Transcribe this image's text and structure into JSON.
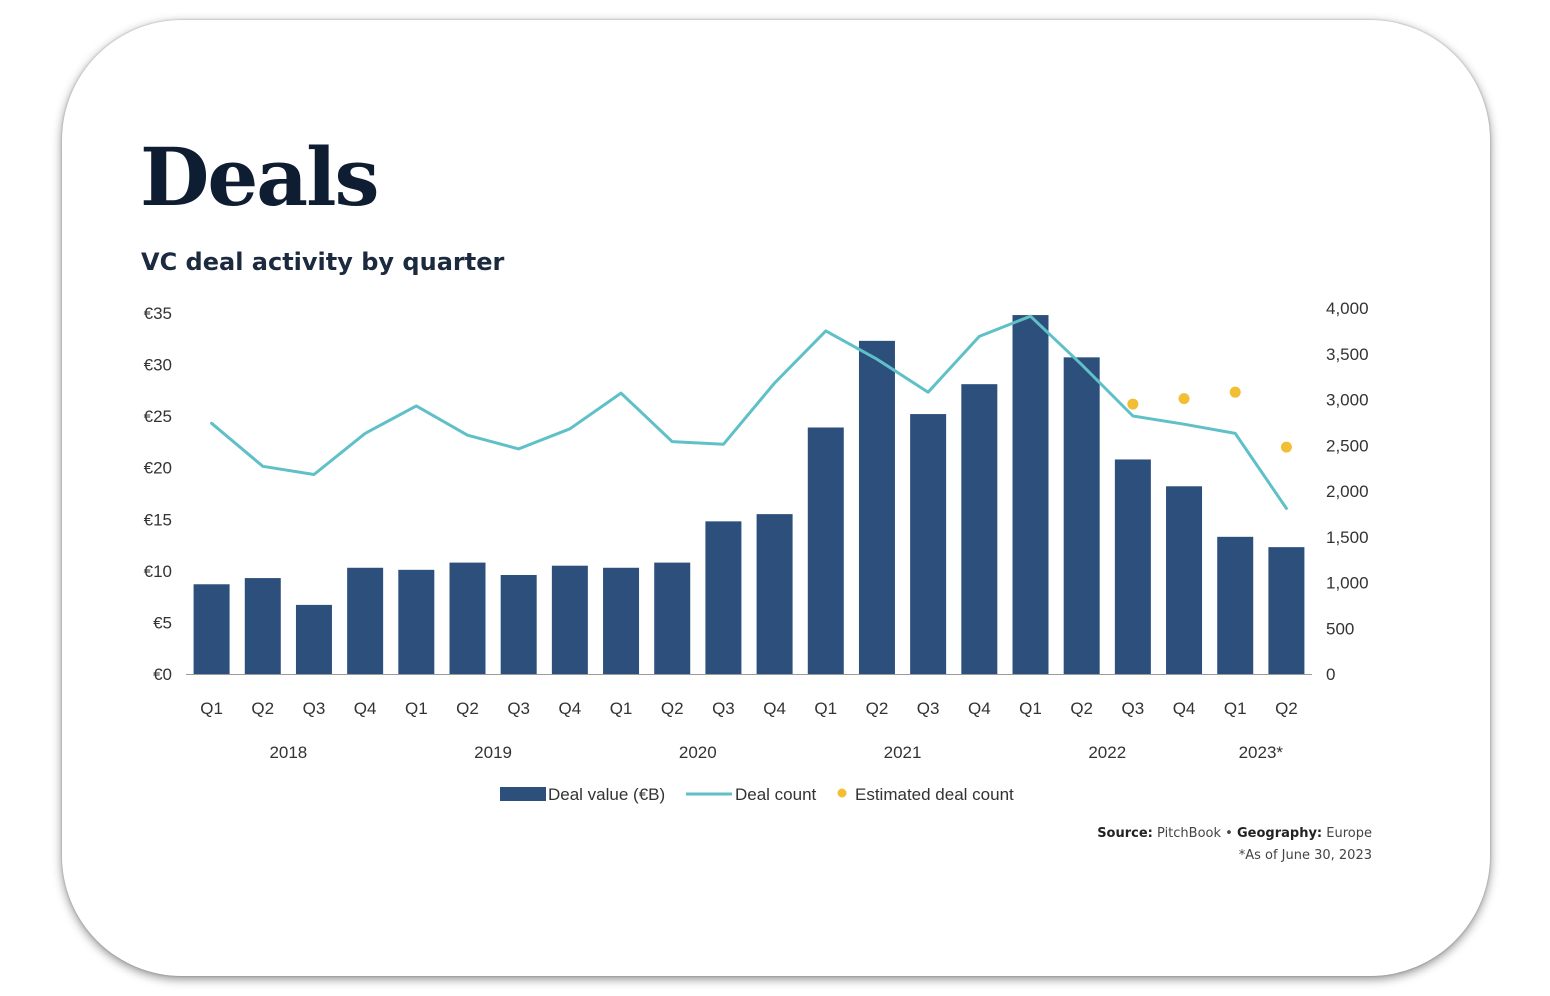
{
  "header": {
    "title": "Deals",
    "subtitle": "VC deal activity by quarter"
  },
  "footer": {
    "source_label": "Source:",
    "source_value": "PitchBook",
    "separator": "•",
    "geography_label": "Geography:",
    "geography_value": "Europe",
    "note": "*As of June 30, 2023"
  },
  "colors": {
    "bar": "#2c4f7c",
    "line": "#5fc0c8",
    "estimate": "#f2be33"
  },
  "chart_data": {
    "type": "bar",
    "title": "VC deal activity by quarter",
    "categories": [
      "Q1",
      "Q2",
      "Q3",
      "Q4",
      "Q1",
      "Q2",
      "Q3",
      "Q4",
      "Q1",
      "Q2",
      "Q3",
      "Q4",
      "Q1",
      "Q2",
      "Q3",
      "Q4",
      "Q1",
      "Q2",
      "Q3",
      "Q4",
      "Q1",
      "Q2"
    ],
    "year_groups": [
      {
        "label": "2018",
        "start": 0,
        "end": 3
      },
      {
        "label": "2019",
        "start": 4,
        "end": 7
      },
      {
        "label": "2020",
        "start": 8,
        "end": 11
      },
      {
        "label": "2021",
        "start": 12,
        "end": 15
      },
      {
        "label": "2022",
        "start": 16,
        "end": 19
      },
      {
        "label": "2023*",
        "start": 20,
        "end": 21
      }
    ],
    "series": [
      {
        "name": "Deal value (€B)",
        "type": "bar",
        "axis": "left",
        "values": [
          8.7,
          9.3,
          6.7,
          10.3,
          10.1,
          10.8,
          9.6,
          10.5,
          10.3,
          10.8,
          14.8,
          15.5,
          23.9,
          32.3,
          25.2,
          28.1,
          34.8,
          30.7,
          20.8,
          18.2,
          13.3,
          12.3
        ]
      },
      {
        "name": "Deal count",
        "type": "line",
        "axis": "right",
        "values": [
          2740,
          2270,
          2180,
          2630,
          2930,
          2610,
          2460,
          2680,
          3070,
          2540,
          2510,
          3180,
          3750,
          3440,
          3080,
          3690,
          3910,
          3380,
          2820,
          2730,
          2630,
          1810
        ]
      },
      {
        "name": "Estimated deal count",
        "type": "scatter",
        "axis": "right",
        "values": [
          null,
          null,
          null,
          null,
          null,
          null,
          null,
          null,
          null,
          null,
          null,
          null,
          null,
          null,
          null,
          null,
          null,
          null,
          2950,
          3010,
          3080,
          2480
        ]
      }
    ],
    "y_left": {
      "ylim": [
        0,
        35
      ],
      "ticks": [
        0,
        5,
        10,
        15,
        20,
        25,
        30,
        35
      ],
      "tick_labels": [
        "€0",
        "€5",
        "€10",
        "€15",
        "€20",
        "€25",
        "€30",
        "€35"
      ]
    },
    "y_right": {
      "ylim": [
        0,
        4000
      ],
      "ticks": [
        0,
        500,
        1000,
        1500,
        2000,
        2500,
        3000,
        3500,
        4000
      ],
      "tick_labels": [
        "0",
        "500",
        "1,000",
        "1,500",
        "2,000",
        "2,500",
        "3,000",
        "3,500",
        "4,000"
      ]
    },
    "grid": false,
    "legend_position": "bottom"
  }
}
